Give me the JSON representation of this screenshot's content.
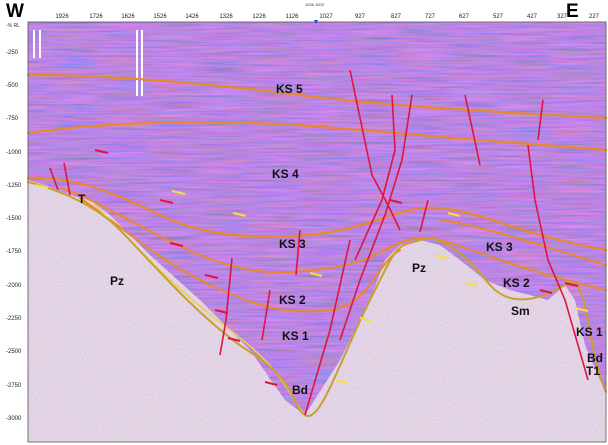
{
  "orientation": {
    "west": "W",
    "east": "E"
  },
  "axis": {
    "corner_label": "-% RL",
    "top_ticks": [
      "1926",
      "1726",
      "1626",
      "1526",
      "1426",
      "1326",
      "1226",
      "1126",
      "1027",
      "927",
      "827",
      "727",
      "627",
      "527",
      "427",
      "327",
      "227"
    ],
    "marker_label": "1026 1003",
    "left_ticks": [
      "-250",
      "-500",
      "-750",
      "-1000",
      "-1250",
      "-1500",
      "-1750",
      "-2000",
      "-2250",
      "-2500",
      "-2750",
      "-3000"
    ]
  },
  "units": {
    "ks5": "KS 5",
    "ks4": "KS 4",
    "ks3_west": "KS 3",
    "ks3_east": "KS 3",
    "ks2_west": "KS 2",
    "ks2_east": "KS 2",
    "ks1_west": "KS 1",
    "ks1_east": "KS 1",
    "pz_west": "Pz",
    "pz_east": "Pz",
    "t_west": "T",
    "bd_center": "Bd",
    "bd_east": "Bd",
    "sm": "Sm",
    "t1_east": "T1"
  },
  "colors": {
    "background": "#d9c6d6",
    "horizon_orange": "#e8892a",
    "horizon_yellow": "#e6d24a",
    "fault_red": "#e0143c",
    "basement_gold": "#c8a030",
    "arrow_yellow": "#f2e23a"
  }
}
